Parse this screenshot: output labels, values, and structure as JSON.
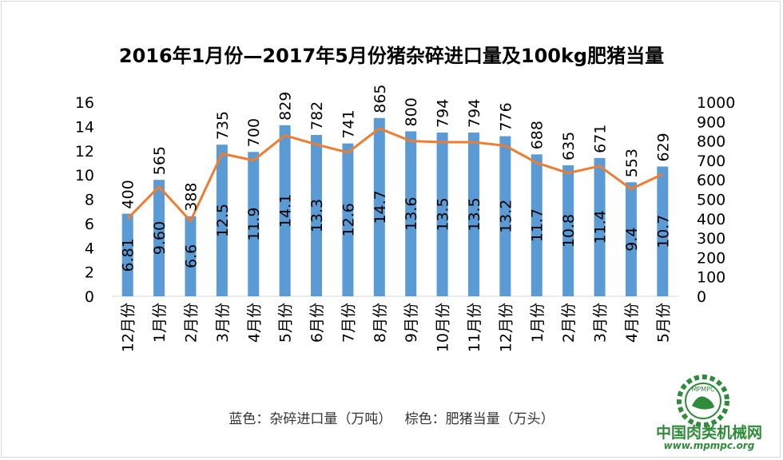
{
  "title": "2016年1月份—2017年5月份猪杂碎进口量及100kg肥猪当量",
  "caption": "蓝色：杂碎进口量（万吨）   棕色：肥猪当量（万头）",
  "watermark": {
    "text": "中国肉类机械网",
    "url": "www.mpmpc.org",
    "badge": "MPMPC"
  },
  "colors": {
    "bar": "#5b9bd5",
    "line": "#ed7d31",
    "watermark": "#2e8b3a"
  },
  "chart_data": {
    "type": "bar+line",
    "categories": [
      "12月份",
      "1月份",
      "2月份",
      "3月份",
      "4月份",
      "5月份",
      "6月份",
      "7月份",
      "8月份",
      "9月份",
      "10月份",
      "11月份",
      "12月份",
      "1月份",
      "2月份",
      "3月份",
      "4月份",
      "5月份"
    ],
    "series": [
      {
        "type": "bar",
        "axis": "left",
        "values": [
          6.81,
          9.6,
          6.6,
          12.5,
          11.9,
          14.1,
          13.3,
          12.6,
          14.7,
          13.6,
          13.5,
          13.5,
          13.2,
          11.7,
          10.8,
          11.4,
          9.4,
          10.7
        ],
        "labels": [
          "6.81",
          "9.60",
          "6.6",
          "12.5",
          "11.9",
          "14.1",
          "13.3",
          "12.6",
          "14.7",
          "13.6",
          "13.5",
          "13.5",
          "13.2",
          "11.7",
          "10.8",
          "11.4",
          "9.4",
          "10.7"
        ]
      },
      {
        "type": "line",
        "axis": "right",
        "values": [
          400,
          565,
          388,
          735,
          700,
          829,
          782,
          741,
          865,
          800,
          794,
          794,
          776,
          688,
          635,
          671,
          553,
          629
        ],
        "labels": [
          "400",
          "565",
          "388",
          "735",
          "700",
          "829",
          "782",
          "741",
          "865",
          "800",
          "794",
          "794",
          "776",
          "688",
          "635",
          "671",
          "553",
          "629"
        ]
      }
    ],
    "y_left": {
      "min": 0,
      "max": 16,
      "ticks": [
        "0",
        "2",
        "4",
        "6",
        "8",
        "10",
        "12",
        "14",
        "16"
      ]
    },
    "y_right": {
      "min": 0,
      "max": 1000,
      "ticks": [
        "0",
        "100",
        "200",
        "300",
        "400",
        "500",
        "600",
        "700",
        "800",
        "900",
        "1000"
      ]
    },
    "grid": false
  }
}
